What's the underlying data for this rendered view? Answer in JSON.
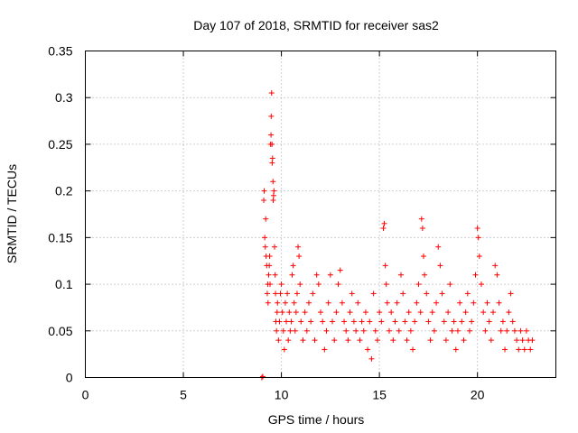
{
  "chart_data": {
    "type": "scatter",
    "title": "Day 107 of 2018, SRMTID for receiver sas2",
    "xlabel": "GPS time / hours",
    "ylabel": "SRMTID / TECUs",
    "xlim": [
      0,
      24
    ],
    "ylim": [
      0,
      0.35
    ],
    "xticks": [
      0,
      5,
      10,
      15,
      20
    ],
    "xtick_labels": [
      "0",
      "5",
      "10",
      "15",
      "20"
    ],
    "yticks": [
      0,
      0.05,
      0.1,
      0.15,
      0.2,
      0.25,
      0.3,
      0.35
    ],
    "ytick_labels": [
      "0",
      "0.05",
      "0.1",
      "0.15",
      "0.2",
      "0.25",
      "0.3",
      "0.35"
    ],
    "grid": true,
    "marker": "plus",
    "color": "#ff0000",
    "series": [
      {
        "name": "SRMTID",
        "points": [
          [
            9.0,
            0.0
          ],
          [
            9.05,
            0.001
          ],
          [
            9.1,
            0.19
          ],
          [
            9.12,
            0.2
          ],
          [
            9.15,
            0.15
          ],
          [
            9.18,
            0.14
          ],
          [
            9.2,
            0.17
          ],
          [
            9.22,
            0.13
          ],
          [
            9.25,
            0.12
          ],
          [
            9.28,
            0.09
          ],
          [
            9.3,
            0.1
          ],
          [
            9.32,
            0.08
          ],
          [
            9.35,
            0.11
          ],
          [
            9.38,
            0.12
          ],
          [
            9.4,
            0.13
          ],
          [
            9.42,
            0.1
          ],
          [
            9.45,
            0.25
          ],
          [
            9.47,
            0.26
          ],
          [
            9.48,
            0.28
          ],
          [
            9.5,
            0.305
          ],
          [
            9.52,
            0.25
          ],
          [
            9.53,
            0.23
          ],
          [
            9.55,
            0.235
          ],
          [
            9.57,
            0.21
          ],
          [
            9.58,
            0.19
          ],
          [
            9.6,
            0.195
          ],
          [
            9.62,
            0.2
          ],
          [
            9.65,
            0.14
          ],
          [
            9.68,
            0.11
          ],
          [
            9.7,
            0.09
          ],
          [
            9.72,
            0.06
          ],
          [
            9.75,
            0.05
          ],
          [
            9.78,
            0.07
          ],
          [
            9.8,
            0.08
          ],
          [
            9.85,
            0.04
          ],
          [
            9.9,
            0.06
          ],
          [
            9.95,
            0.09
          ],
          [
            10.0,
            0.1
          ],
          [
            10.05,
            0.07
          ],
          [
            10.1,
            0.05
          ],
          [
            10.15,
            0.03
          ],
          [
            10.2,
            0.08
          ],
          [
            10.25,
            0.06
          ],
          [
            10.3,
            0.09
          ],
          [
            10.35,
            0.04
          ],
          [
            10.4,
            0.07
          ],
          [
            10.45,
            0.05
          ],
          [
            10.5,
            0.06
          ],
          [
            10.55,
            0.11
          ],
          [
            10.6,
            0.12
          ],
          [
            10.65,
            0.08
          ],
          [
            10.7,
            0.05
          ],
          [
            10.75,
            0.07
          ],
          [
            10.8,
            0.09
          ],
          [
            10.85,
            0.14
          ],
          [
            10.9,
            0.13
          ],
          [
            10.95,
            0.1
          ],
          [
            11.0,
            0.06
          ],
          [
            11.1,
            0.04
          ],
          [
            11.2,
            0.07
          ],
          [
            11.3,
            0.05
          ],
          [
            11.4,
            0.08
          ],
          [
            11.5,
            0.06
          ],
          [
            11.6,
            0.09
          ],
          [
            11.7,
            0.04
          ],
          [
            11.8,
            0.11
          ],
          [
            11.9,
            0.1
          ],
          [
            12.0,
            0.07
          ],
          [
            12.1,
            0.06
          ],
          [
            12.2,
            0.03
          ],
          [
            12.3,
            0.05
          ],
          [
            12.4,
            0.08
          ],
          [
            12.5,
            0.11
          ],
          [
            12.6,
            0.06
          ],
          [
            12.7,
            0.04
          ],
          [
            12.8,
            0.07
          ],
          [
            12.9,
            0.1
          ],
          [
            13.0,
            0.115
          ],
          [
            13.1,
            0.08
          ],
          [
            13.2,
            0.06
          ],
          [
            13.3,
            0.05
          ],
          [
            13.4,
            0.04
          ],
          [
            13.5,
            0.07
          ],
          [
            13.6,
            0.09
          ],
          [
            13.7,
            0.06
          ],
          [
            13.8,
            0.05
          ],
          [
            13.9,
            0.08
          ],
          [
            14.0,
            0.04
          ],
          [
            14.1,
            0.06
          ],
          [
            14.2,
            0.05
          ],
          [
            14.3,
            0.07
          ],
          [
            14.4,
            0.03
          ],
          [
            14.5,
            0.06
          ],
          [
            14.6,
            0.02
          ],
          [
            14.7,
            0.09
          ],
          [
            14.8,
            0.05
          ],
          [
            14.9,
            0.04
          ],
          [
            15.0,
            0.07
          ],
          [
            15.1,
            0.06
          ],
          [
            15.2,
            0.16
          ],
          [
            15.25,
            0.165
          ],
          [
            15.3,
            0.12
          ],
          [
            15.35,
            0.1
          ],
          [
            15.4,
            0.08
          ],
          [
            15.5,
            0.05
          ],
          [
            15.6,
            0.07
          ],
          [
            15.7,
            0.04
          ],
          [
            15.8,
            0.06
          ],
          [
            15.9,
            0.08
          ],
          [
            16.0,
            0.05
          ],
          [
            16.1,
            0.11
          ],
          [
            16.2,
            0.09
          ],
          [
            16.3,
            0.06
          ],
          [
            16.4,
            0.04
          ],
          [
            16.5,
            0.07
          ],
          [
            16.6,
            0.05
          ],
          [
            16.7,
            0.03
          ],
          [
            16.8,
            0.06
          ],
          [
            16.9,
            0.08
          ],
          [
            17.0,
            0.1
          ],
          [
            17.1,
            0.07
          ],
          [
            17.15,
            0.17
          ],
          [
            17.2,
            0.16
          ],
          [
            17.25,
            0.13
          ],
          [
            17.3,
            0.11
          ],
          [
            17.4,
            0.09
          ],
          [
            17.5,
            0.06
          ],
          [
            17.6,
            0.04
          ],
          [
            17.7,
            0.07
          ],
          [
            17.8,
            0.05
          ],
          [
            17.9,
            0.08
          ],
          [
            18.0,
            0.14
          ],
          [
            18.1,
            0.12
          ],
          [
            18.2,
            0.09
          ],
          [
            18.3,
            0.06
          ],
          [
            18.4,
            0.04
          ],
          [
            18.5,
            0.07
          ],
          [
            18.6,
            0.1
          ],
          [
            18.7,
            0.05
          ],
          [
            18.8,
            0.06
          ],
          [
            18.9,
            0.03
          ],
          [
            19.0,
            0.05
          ],
          [
            19.1,
            0.08
          ],
          [
            19.2,
            0.06
          ],
          [
            19.3,
            0.04
          ],
          [
            19.4,
            0.07
          ],
          [
            19.5,
            0.09
          ],
          [
            19.6,
            0.05
          ],
          [
            19.7,
            0.06
          ],
          [
            19.8,
            0.08
          ],
          [
            19.9,
            0.11
          ],
          [
            20.0,
            0.16
          ],
          [
            20.05,
            0.15
          ],
          [
            20.1,
            0.13
          ],
          [
            20.2,
            0.1
          ],
          [
            20.3,
            0.07
          ],
          [
            20.4,
            0.05
          ],
          [
            20.5,
            0.08
          ],
          [
            20.6,
            0.06
          ],
          [
            20.7,
            0.04
          ],
          [
            20.8,
            0.07
          ],
          [
            20.9,
            0.12
          ],
          [
            21.0,
            0.11
          ],
          [
            21.1,
            0.08
          ],
          [
            21.2,
            0.05
          ],
          [
            21.3,
            0.06
          ],
          [
            21.4,
            0.03
          ],
          [
            21.5,
            0.05
          ],
          [
            21.6,
            0.07
          ],
          [
            21.7,
            0.09
          ],
          [
            21.8,
            0.06
          ],
          [
            21.9,
            0.05
          ],
          [
            22.0,
            0.04
          ],
          [
            22.1,
            0.03
          ],
          [
            22.2,
            0.05
          ],
          [
            22.3,
            0.04
          ],
          [
            22.4,
            0.03
          ],
          [
            22.5,
            0.05
          ],
          [
            22.6,
            0.04
          ],
          [
            22.7,
            0.03
          ],
          [
            22.8,
            0.04
          ]
        ]
      }
    ]
  }
}
